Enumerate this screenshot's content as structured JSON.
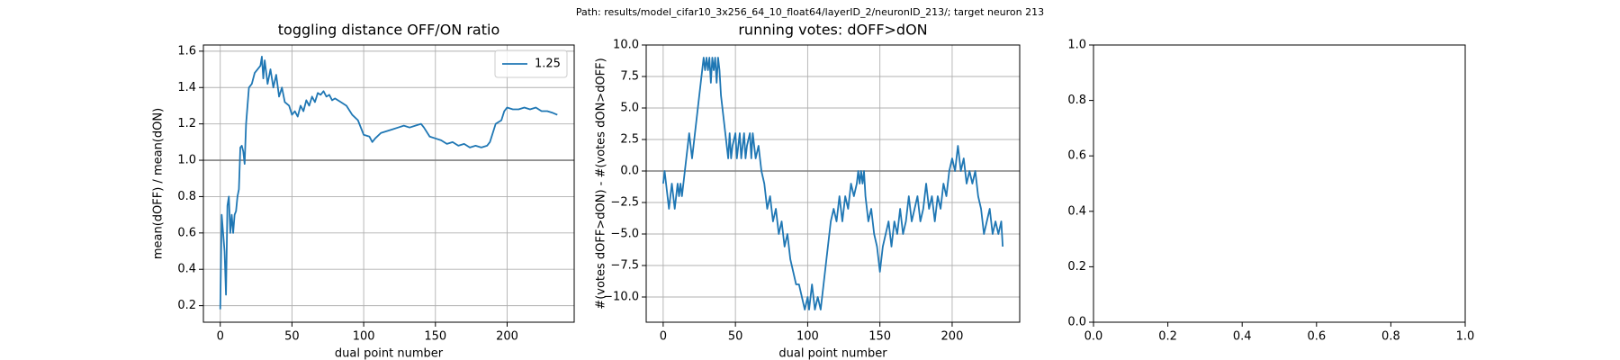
{
  "suptitle": "Path: results/model_cifar10_3x256_64_10_float64/layerID_2/neuronID_213/; target neuron 213",
  "chart_data": [
    {
      "type": "line",
      "title": "toggling distance OFF/ON ratio",
      "xlabel": "dual point number",
      "ylabel": "mean(dOFF) / mean(dON)",
      "x": [
        0,
        1,
        2,
        3,
        4,
        5,
        6,
        7,
        8,
        9,
        10,
        11,
        12,
        13,
        14,
        15,
        16,
        17,
        18,
        20,
        22,
        24,
        26,
        28,
        29,
        30,
        31,
        33,
        35,
        37,
        39,
        41,
        43,
        45,
        48,
        50,
        52,
        54,
        56,
        58,
        60,
        62,
        64,
        66,
        68,
        70,
        72,
        74,
        76,
        78,
        80,
        84,
        88,
        92,
        96,
        100,
        104,
        106,
        108,
        112,
        116,
        120,
        124,
        128,
        132,
        136,
        140,
        142,
        146,
        150,
        154,
        158,
        162,
        166,
        170,
        174,
        178,
        182,
        186,
        188,
        190,
        192,
        196,
        198,
        200,
        204,
        208,
        212,
        216,
        220,
        224,
        228,
        232,
        235
      ],
      "series": [
        {
          "name": "1.25",
          "color": "#1f77b4",
          "values": [
            0.18,
            0.7,
            0.6,
            0.5,
            0.26,
            0.75,
            0.8,
            0.6,
            0.7,
            0.6,
            0.7,
            0.72,
            0.8,
            0.84,
            1.07,
            1.08,
            1.05,
            0.98,
            1.2,
            1.4,
            1.42,
            1.48,
            1.5,
            1.52,
            1.57,
            1.45,
            1.55,
            1.42,
            1.5,
            1.4,
            1.47,
            1.35,
            1.4,
            1.32,
            1.3,
            1.25,
            1.27,
            1.24,
            1.3,
            1.27,
            1.33,
            1.3,
            1.35,
            1.32,
            1.37,
            1.36,
            1.38,
            1.35,
            1.36,
            1.33,
            1.34,
            1.32,
            1.3,
            1.25,
            1.22,
            1.14,
            1.13,
            1.1,
            1.12,
            1.15,
            1.16,
            1.17,
            1.18,
            1.19,
            1.18,
            1.19,
            1.2,
            1.18,
            1.13,
            1.12,
            1.11,
            1.09,
            1.1,
            1.08,
            1.09,
            1.07,
            1.08,
            1.07,
            1.08,
            1.1,
            1.15,
            1.2,
            1.22,
            1.27,
            1.29,
            1.28,
            1.28,
            1.29,
            1.28,
            1.29,
            1.27,
            1.27,
            1.26,
            1.25
          ]
        }
      ],
      "axhline": 1,
      "axhline_color": "#808080",
      "xlim": [
        -11.75,
        246.75
      ],
      "xticks": [
        0,
        50,
        100,
        150,
        200
      ],
      "ylim": [
        0.109,
        1.634
      ],
      "yticks": [
        0.2,
        0.4,
        0.6,
        0.8,
        {
          "value": 1,
          "label": "1.0"
        },
        1.2,
        1.4,
        1.6
      ],
      "grid": true,
      "legend": "upper right"
    },
    {
      "type": "line",
      "title": "running votes: dOFF>dON",
      "xlabel": "dual point number",
      "ylabel": "#(votes dOFF>dON) - #(votes dON>dOFF)",
      "x": [
        0,
        1,
        2,
        3,
        4,
        5,
        6,
        7,
        8,
        9,
        10,
        11,
        12,
        13,
        14,
        15,
        16,
        17,
        18,
        19,
        20,
        21,
        22,
        24,
        26,
        28,
        29,
        30,
        31,
        32,
        33,
        34,
        35,
        36,
        37,
        38,
        39,
        40,
        42,
        44,
        45,
        46,
        47,
        48,
        50,
        51,
        52,
        53,
        54,
        56,
        57,
        58,
        60,
        61,
        62,
        64,
        66,
        68,
        70,
        72,
        74,
        76,
        78,
        80,
        82,
        84,
        86,
        88,
        90,
        92,
        94,
        96,
        98,
        100,
        101,
        103,
        105,
        107,
        109,
        110,
        112,
        114,
        116,
        118,
        120,
        122,
        124,
        126,
        128,
        130,
        132,
        134,
        135,
        136,
        137,
        138,
        139,
        140,
        142,
        144,
        146,
        148,
        150,
        152,
        154,
        156,
        158,
        160,
        162,
        164,
        166,
        168,
        170,
        172,
        174,
        176,
        178,
        180,
        182,
        184,
        186,
        188,
        190,
        192,
        194,
        196,
        198,
        200,
        202,
        204,
        206,
        208,
        210,
        212,
        214,
        216,
        218,
        220,
        222,
        224,
        226,
        228,
        230,
        232,
        234,
        235
      ],
      "series": [
        {
          "color": "#1f77b4",
          "values": [
            -1,
            0,
            -1,
            -2,
            -3,
            -2,
            -1,
            -2,
            -3,
            -2,
            -1,
            -2,
            -1,
            -2,
            -1,
            0,
            1,
            2,
            3,
            2,
            1,
            2,
            3,
            5,
            7,
            9,
            8,
            9,
            8,
            9,
            7,
            9,
            8,
            9,
            7,
            9,
            8,
            6,
            4,
            2,
            1,
            3,
            1,
            2,
            3,
            1,
            2,
            3,
            1,
            3,
            1,
            2,
            3,
            1,
            3,
            1,
            2,
            0,
            -1,
            -3,
            -2,
            -4,
            -3,
            -5,
            -4,
            -6,
            -5,
            -7,
            -8,
            -9,
            -9,
            -10,
            -11,
            -10,
            -11,
            -9,
            -11,
            -10,
            -11,
            -10,
            -8,
            -6,
            -4,
            -3,
            -4,
            -2,
            -4,
            -2,
            -3,
            -1,
            -2,
            -1,
            0,
            -1,
            0,
            -1,
            0,
            -2,
            -4,
            -3,
            -5,
            -6,
            -8,
            -6,
            -5,
            -4,
            -6,
            -4,
            -5,
            -3,
            -5,
            -4,
            -2,
            -4,
            -3,
            -2,
            -4,
            -3,
            -1,
            -3,
            -2,
            -4,
            -2,
            -3,
            -1,
            -2,
            0,
            1,
            0,
            2,
            0,
            1,
            -1,
            0,
            -1,
            0,
            -2,
            -3,
            -5,
            -4,
            -3,
            -5,
            -4,
            -5,
            -4,
            -6
          ]
        }
      ],
      "axhline": 0,
      "axhline_color": "#808080",
      "xlim": [
        -11.75,
        246.75
      ],
      "xticks": [
        0,
        50,
        100,
        150,
        200
      ],
      "ylim": [
        -12,
        10
      ],
      "yticks": [
        {
          "value": -10,
          "label": "−10.0"
        },
        {
          "value": -7.5,
          "label": "−7.5"
        },
        {
          "value": -5,
          "label": "−5.0"
        },
        {
          "value": -2.5,
          "label": "−2.5"
        },
        {
          "value": 0,
          "label": "0.0"
        },
        2.5,
        {
          "value": 5,
          "label": "5.0"
        },
        7.5,
        {
          "value": 10,
          "label": "10.0"
        }
      ],
      "grid": true
    },
    {
      "type": "line",
      "xlim": [
        0,
        1
      ],
      "xticks": [
        {
          "value": 0,
          "label": "0.0"
        },
        0.2,
        0.4,
        0.6,
        0.8,
        {
          "value": 1,
          "label": "1.0"
        }
      ],
      "ylim": [
        0,
        1
      ],
      "yticks": [
        {
          "value": 0,
          "label": "0.0"
        },
        0.2,
        0.4,
        0.6,
        0.8,
        {
          "value": 1,
          "label": "1.0"
        }
      ],
      "grid": false
    }
  ]
}
